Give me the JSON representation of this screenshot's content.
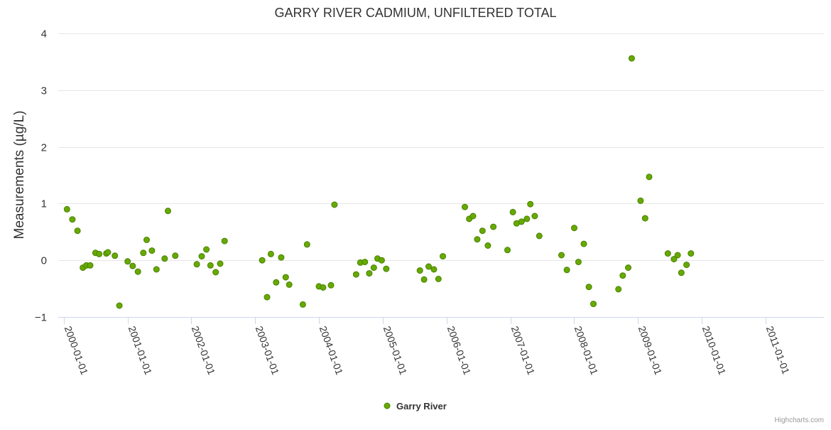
{
  "chart_data": {
    "type": "scatter",
    "title": "GARRY RIVER CADMIUM, UNFILTERED TOTAL",
    "xlabel": "",
    "ylabel": "Measurements (µg/L)",
    "ylim": [
      -1,
      4
    ],
    "yticks": [
      "−1",
      "0",
      "1",
      "2",
      "3",
      "4"
    ],
    "ytick_values": [
      -1,
      0,
      1,
      2,
      3,
      4
    ],
    "xlim": [
      "1999-12-01",
      "2011-11-30"
    ],
    "xticks": [
      "2000-01-01",
      "2001-01-01",
      "2002-01-01",
      "2003-01-01",
      "2004-01-01",
      "2005-01-01",
      "2006-01-01",
      "2007-01-01",
      "2008-01-01",
      "2009-01-01",
      "2010-01-01",
      "2011-01-01"
    ],
    "grid": true,
    "legend_position": "bottom-center",
    "series": [
      {
        "name": "Garry River",
        "color": "#66aa00",
        "points": [
          [
            "2000-01-20",
            0.9
          ],
          [
            "2000-02-20",
            0.72
          ],
          [
            "2000-03-20",
            0.52
          ],
          [
            "2000-04-20",
            -0.13
          ],
          [
            "2000-05-10",
            -0.09
          ],
          [
            "2000-06-01",
            -0.09
          ],
          [
            "2000-07-01",
            0.13
          ],
          [
            "2000-07-22",
            0.11
          ],
          [
            "2000-09-01",
            0.12
          ],
          [
            "2000-09-10",
            0.14
          ],
          [
            "2000-10-20",
            0.08
          ],
          [
            "2000-11-15",
            -0.8
          ],
          [
            "2001-01-01",
            -0.02
          ],
          [
            "2001-01-30",
            -0.1
          ],
          [
            "2001-03-01",
            -0.2
          ],
          [
            "2001-04-01",
            0.13
          ],
          [
            "2001-04-20",
            0.36
          ],
          [
            "2001-05-20",
            0.17
          ],
          [
            "2001-06-15",
            -0.16
          ],
          [
            "2001-08-01",
            0.03
          ],
          [
            "2001-08-20",
            0.87
          ],
          [
            "2001-10-01",
            0.08
          ],
          [
            "2002-02-01",
            -0.07
          ],
          [
            "2002-03-01",
            0.07
          ],
          [
            "2002-03-28",
            0.19
          ],
          [
            "2002-04-20",
            -0.09
          ],
          [
            "2002-05-20",
            -0.21
          ],
          [
            "2002-06-15",
            -0.06
          ],
          [
            "2002-07-10",
            0.34
          ],
          [
            "2003-02-10",
            0.0
          ],
          [
            "2003-03-10",
            -0.65
          ],
          [
            "2003-04-01",
            0.11
          ],
          [
            "2003-05-01",
            -0.39
          ],
          [
            "2003-05-30",
            0.05
          ],
          [
            "2003-06-25",
            -0.3
          ],
          [
            "2003-07-15",
            -0.43
          ],
          [
            "2003-10-01",
            -0.78
          ],
          [
            "2003-10-25",
            0.28
          ],
          [
            "2004-01-01",
            -0.46
          ],
          [
            "2004-01-25",
            -0.48
          ],
          [
            "2004-03-10",
            -0.44
          ],
          [
            "2004-03-30",
            0.98
          ],
          [
            "2004-08-01",
            -0.25
          ],
          [
            "2004-08-25",
            -0.04
          ],
          [
            "2004-09-20",
            -0.03
          ],
          [
            "2004-10-15",
            -0.23
          ],
          [
            "2004-11-10",
            -0.13
          ],
          [
            "2004-12-01",
            0.03
          ],
          [
            "2004-12-25",
            0.0
          ],
          [
            "2005-01-20",
            -0.15
          ],
          [
            "2005-08-01",
            -0.18
          ],
          [
            "2005-08-25",
            -0.34
          ],
          [
            "2005-09-20",
            -0.11
          ],
          [
            "2005-10-20",
            -0.16
          ],
          [
            "2005-11-15",
            -0.33
          ],
          [
            "2005-12-10",
            0.07
          ],
          [
            "2006-04-15",
            0.94
          ],
          [
            "2006-05-10",
            0.73
          ],
          [
            "2006-06-01",
            0.78
          ],
          [
            "2006-06-25",
            0.37
          ],
          [
            "2006-07-25",
            0.52
          ],
          [
            "2006-08-25",
            0.26
          ],
          [
            "2006-09-25",
            0.59
          ],
          [
            "2006-12-15",
            0.18
          ],
          [
            "2007-01-15",
            0.85
          ],
          [
            "2007-02-05",
            0.65
          ],
          [
            "2007-03-05",
            0.68
          ],
          [
            "2007-04-05",
            0.73
          ],
          [
            "2007-04-25",
            0.99
          ],
          [
            "2007-05-20",
            0.78
          ],
          [
            "2007-06-15",
            0.43
          ],
          [
            "2007-10-20",
            0.09
          ],
          [
            "2007-11-20",
            -0.17
          ],
          [
            "2008-01-01",
            0.57
          ],
          [
            "2008-01-25",
            -0.03
          ],
          [
            "2008-02-25",
            0.29
          ],
          [
            "2008-03-25",
            -0.47
          ],
          [
            "2008-04-20",
            -0.77
          ],
          [
            "2008-09-10",
            -0.51
          ],
          [
            "2008-10-05",
            -0.27
          ],
          [
            "2008-11-05",
            -0.13
          ],
          [
            "2008-11-25",
            3.56
          ],
          [
            "2009-01-15",
            1.05
          ],
          [
            "2009-02-10",
            0.74
          ],
          [
            "2009-03-05",
            1.47
          ],
          [
            "2009-06-20",
            0.12
          ],
          [
            "2009-07-25",
            0.02
          ],
          [
            "2009-08-15",
            0.09
          ],
          [
            "2009-09-05",
            -0.22
          ],
          [
            "2009-10-05",
            -0.08
          ],
          [
            "2009-10-30",
            0.12
          ]
        ]
      }
    ]
  },
  "credit": "Highcharts.com"
}
